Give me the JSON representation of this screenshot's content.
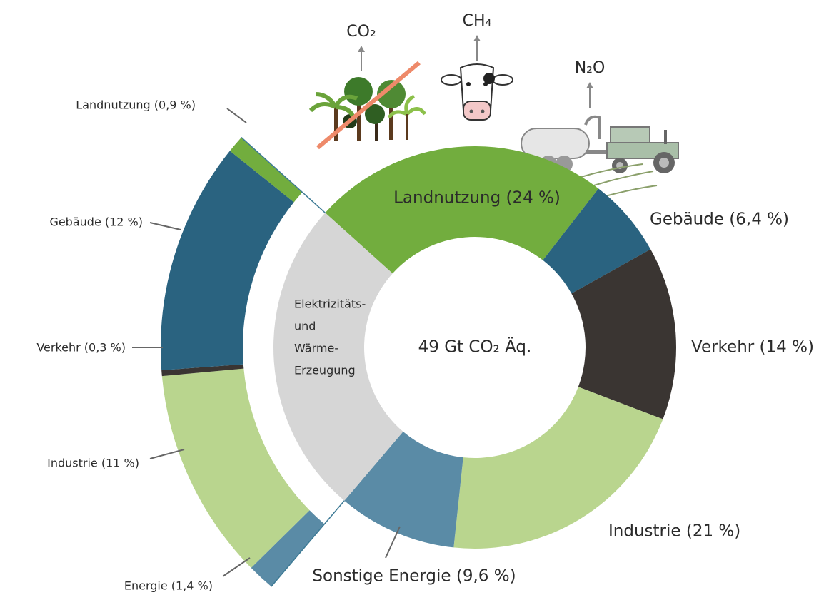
{
  "chart_data": {
    "type": "donut",
    "center_label": "49 Gt CO₂ Äq.",
    "slices": [
      {
        "label": "Landnutzung (24 %)",
        "value": 24,
        "color": "#72ad3e"
      },
      {
        "label": "Gebäude (6,4 %)",
        "value": 6.4,
        "color": "#2a6380"
      },
      {
        "label": "Verkehr (14 %)",
        "value": 14,
        "color": "#3a3532"
      },
      {
        "label": "Industrie (21 %)",
        "value": 21,
        "color": "#b9d58e"
      },
      {
        "label": "Sonstige Energie (9,6 %)",
        "value": 9.6,
        "color": "#5a8ba6"
      },
      {
        "label": [
          "Elektrizitäts-",
          "und",
          "Wärme-",
          "Erzeugung"
        ],
        "value": 25.6,
        "color": "#d6d6d6"
      }
    ],
    "breakdown": [
      {
        "label": "Energie (1,4 %)",
        "value": 1.4,
        "color": "#5a8ba6"
      },
      {
        "label": "Industrie (11 %)",
        "value": 11,
        "color": "#b9d58e"
      },
      {
        "label": "Verkehr (0,3 %)",
        "value": 0.3,
        "color": "#3a3532"
      },
      {
        "label": "Gebäude (12 %)",
        "value": 12,
        "color": "#2a6380"
      },
      {
        "label": "Landnutzung (0,9 %)",
        "value": 0.9,
        "color": "#72ad3e"
      }
    ],
    "annotations": [
      "CO₂",
      "CH₄",
      "N₂O"
    ]
  }
}
